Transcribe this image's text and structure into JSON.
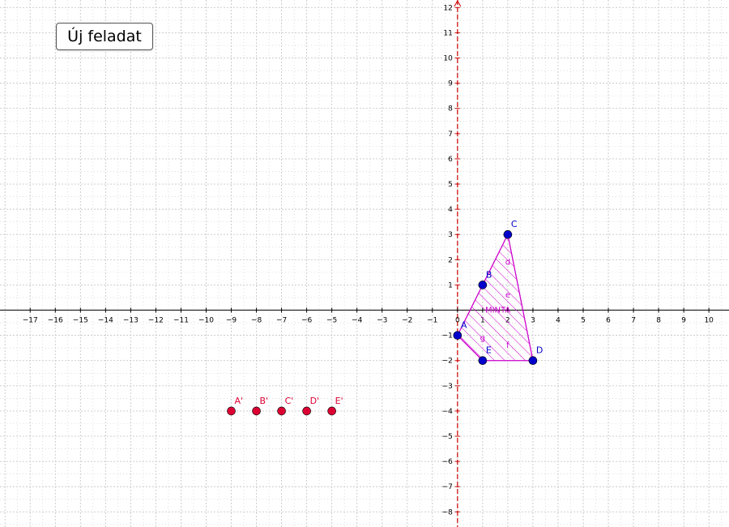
{
  "toolbar": {
    "new_task_label": "Új feladat"
  },
  "axes": {
    "x_ticks": [
      "−17",
      "−16",
      "−15",
      "−14",
      "−13",
      "−12",
      "−11",
      "−10",
      "−9",
      "−8",
      "−7",
      "−6",
      "−5",
      "−4",
      "−3",
      "−2",
      "−1",
      "0",
      "1",
      "2",
      "3",
      "4",
      "5",
      "6",
      "7",
      "8",
      "9",
      "10"
    ],
    "x_values": [
      -17,
      -16,
      -15,
      -14,
      -13,
      -12,
      -11,
      -10,
      -9,
      -8,
      -7,
      -6,
      -5,
      -4,
      -3,
      -2,
      -1,
      0,
      1,
      2,
      3,
      4,
      5,
      6,
      7,
      8,
      9,
      10
    ],
    "y_ticks": [
      "−8",
      "−7",
      "−6",
      "−5",
      "−4",
      "−3",
      "−2",
      "−1",
      "1",
      "2",
      "3",
      "4",
      "5",
      "6",
      "7",
      "8",
      "9",
      "10",
      "11",
      "12"
    ],
    "y_values": [
      -8,
      -7,
      -6,
      -5,
      -4,
      -3,
      -2,
      -1,
      1,
      2,
      3,
      4,
      5,
      6,
      7,
      8,
      9,
      10,
      11,
      12
    ],
    "x_range": [
      -18.2,
      10.8
    ],
    "y_range": [
      -8.6,
      12.3
    ],
    "grid": true,
    "y_axis_color": "#cc0000",
    "axis_color": "#000000",
    "grid_color": "#c8c8c8"
  },
  "shape": {
    "color": "#cc00cc",
    "vertices": [
      {
        "label": "A",
        "x": 0,
        "y": -1
      },
      {
        "label": "C",
        "x": 2,
        "y": 3
      },
      {
        "label": "D",
        "x": 3,
        "y": -2
      },
      {
        "label": "E",
        "x": 1,
        "y": -2
      }
    ],
    "segment_labels": [
      {
        "text": "d",
        "x": 2.0,
        "y": 1.8
      },
      {
        "text": "e",
        "x": 2.0,
        "y": 0.5
      },
      {
        "text": "f",
        "x": 2.0,
        "y": -1.5
      },
      {
        "text": "g",
        "x": 1.0,
        "y": -1.2
      }
    ],
    "caption": {
      "text": "MINTA",
      "x": 1.1,
      "y": -0.1
    }
  },
  "points": {
    "color": "#0000cc",
    "items": [
      {
        "label": "A",
        "x": 0,
        "y": -1
      },
      {
        "label": "B",
        "x": 1,
        "y": 1
      },
      {
        "label": "C",
        "x": 2,
        "y": 3
      },
      {
        "label": "D",
        "x": 3,
        "y": -2
      },
      {
        "label": "E",
        "x": 1,
        "y": -2
      }
    ]
  },
  "image_points": {
    "color": "#dd0033",
    "items": [
      {
        "label": "A'",
        "x": -9,
        "y": -4
      },
      {
        "label": "B'",
        "x": -8,
        "y": -4
      },
      {
        "label": "C'",
        "x": -7,
        "y": -4
      },
      {
        "label": "D'",
        "x": -6,
        "y": -4
      },
      {
        "label": "E'",
        "x": -5,
        "y": -4
      }
    ]
  }
}
